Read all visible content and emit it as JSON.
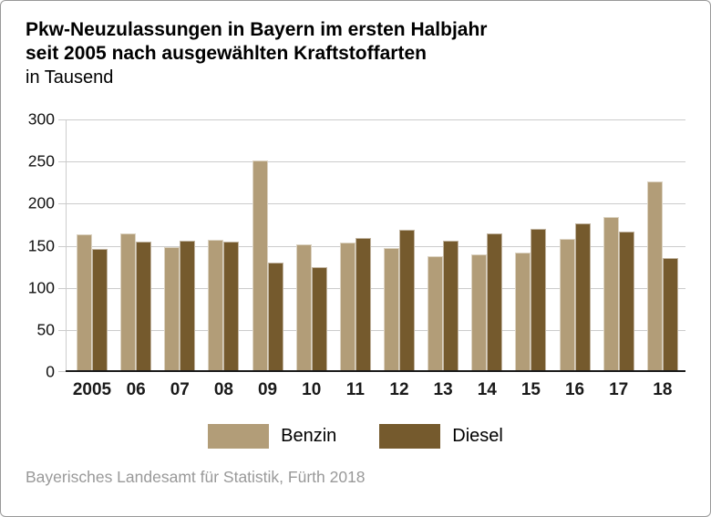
{
  "header": {
    "title_line1": "Pkw-Neuzulassungen in Bayern im ersten Halbjahr",
    "title_line2": "seit 2005 nach ausgewählten Kraftstoffarten",
    "subtitle": "in Tausend"
  },
  "legend": [
    {
      "label": "Benzin",
      "color": "#b29d78"
    },
    {
      "label": "Diesel",
      "color": "#755a2d"
    }
  ],
  "chart_data": {
    "type": "bar",
    "title": "Pkw-Neuzulassungen in Bayern im ersten Halbjahr seit 2005 nach ausgewählten Kraftstoffarten",
    "subtitle": "in Tausend",
    "categories": [
      "2005",
      "06",
      "07",
      "08",
      "09",
      "10",
      "11",
      "12",
      "13",
      "14",
      "15",
      "16",
      "17",
      "18"
    ],
    "series": [
      {
        "name": "Benzin",
        "color": "#b29d78",
        "values": [
          163.5,
          164.5,
          148,
          157.5,
          251,
          152,
          153.5,
          147,
          137.5,
          140,
          142,
          158,
          184,
          226.5
        ]
      },
      {
        "name": "Diesel",
        "color": "#755a2d",
        "values": [
          146.5,
          155,
          156,
          155,
          129.5,
          125,
          159.5,
          169,
          155.5,
          164.5,
          170,
          177,
          167,
          135
        ]
      }
    ],
    "xlabel": "",
    "ylabel": "in Tausend",
    "ylim": [
      0,
      300
    ],
    "yticks": [
      0,
      50,
      100,
      150,
      200,
      250,
      300
    ],
    "grid": true,
    "legend_position": "bottom"
  },
  "colors": {
    "grid": "#cccccc",
    "baseline": "#1a1a1a",
    "axis_text": "#1a1a1a",
    "footer_text": "#999999",
    "border": "#999999"
  },
  "footer": {
    "source": "Bayerisches Landesamt für Statistik, Fürth 2018"
  }
}
